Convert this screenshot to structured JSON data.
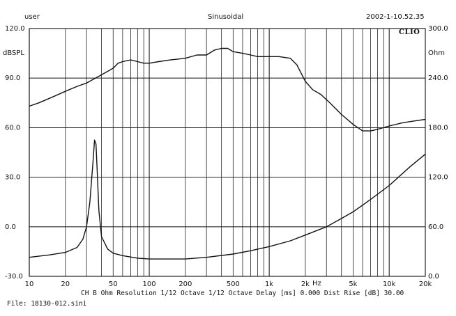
{
  "header": {
    "user": "user",
    "mode": "Sinusoidal",
    "datetime": "2002-1-10.52.35",
    "logo": "CLIO"
  },
  "footer": {
    "settings": "CH B  Ohm  Resolution 1/12 Octave   1/12 Octave  Delay [ms] 0.000   Dist Rise [dB] 30.00",
    "file": "File: 18130-012.sini"
  },
  "colors": {
    "background": "#ffffff",
    "trace": "#111111",
    "grid": "#222222"
  },
  "chart_data": {
    "type": "line",
    "grid": true,
    "x_scale": "log",
    "xlim": [
      10,
      20000
    ],
    "x_ticks": [
      10,
      20,
      50,
      100,
      200,
      500,
      1000,
      2000,
      5000,
      10000,
      20000
    ],
    "x_tick_labels": [
      "10",
      "20",
      "50",
      "100",
      "200",
      "500",
      "1k",
      "2k",
      "5k",
      "10k",
      "20k"
    ],
    "x_unit": "Hz",
    "left_axis": {
      "label": "dBSPL",
      "ylim": [
        -30,
        120
      ],
      "ticks": [
        120,
        90,
        60,
        30,
        0,
        -30
      ],
      "tick_labels": [
        "120.0",
        "90.0",
        "60.0",
        "30.0",
        "0.0",
        "-30.0"
      ]
    },
    "right_axis": {
      "label": "Ohm",
      "ylim": [
        0,
        300
      ],
      "ticks": [
        300,
        240,
        180,
        120,
        60,
        0
      ],
      "tick_labels": [
        "300.0",
        "240.0",
        "180.0",
        "120.0",
        "60.0",
        "0.0"
      ]
    },
    "series": [
      {
        "axis": "left",
        "points": [
          [
            10,
            73
          ],
          [
            12,
            75
          ],
          [
            15,
            78
          ],
          [
            20,
            82
          ],
          [
            25,
            85
          ],
          [
            30,
            87
          ],
          [
            40,
            92
          ],
          [
            50,
            96
          ],
          [
            55,
            99
          ],
          [
            60,
            100
          ],
          [
            70,
            101
          ],
          [
            80,
            100
          ],
          [
            90,
            99
          ],
          [
            100,
            99
          ],
          [
            120,
            100
          ],
          [
            150,
            101
          ],
          [
            200,
            102
          ],
          [
            250,
            104
          ],
          [
            300,
            104
          ],
          [
            350,
            107
          ],
          [
            400,
            108
          ],
          [
            450,
            108
          ],
          [
            500,
            106
          ],
          [
            600,
            105
          ],
          [
            700,
            104
          ],
          [
            800,
            103
          ],
          [
            1000,
            103
          ],
          [
            1200,
            103
          ],
          [
            1500,
            102
          ],
          [
            1700,
            98
          ],
          [
            2000,
            88
          ],
          [
            2300,
            83
          ],
          [
            2700,
            80
          ],
          [
            3200,
            75
          ],
          [
            4000,
            68
          ],
          [
            5000,
            62
          ],
          [
            6000,
            58
          ],
          [
            7000,
            58
          ],
          [
            8000,
            59
          ],
          [
            10000,
            61
          ],
          [
            13000,
            63
          ],
          [
            16000,
            64
          ],
          [
            20000,
            65
          ]
        ]
      },
      {
        "axis": "right",
        "points": [
          [
            10,
            23
          ],
          [
            15,
            26
          ],
          [
            20,
            29
          ],
          [
            25,
            35
          ],
          [
            28,
            45
          ],
          [
            30,
            60
          ],
          [
            32,
            90
          ],
          [
            34,
            140
          ],
          [
            35,
            165
          ],
          [
            36,
            160
          ],
          [
            37,
            120
          ],
          [
            38,
            80
          ],
          [
            40,
            48
          ],
          [
            45,
            33
          ],
          [
            50,
            28
          ],
          [
            60,
            25
          ],
          [
            80,
            22
          ],
          [
            100,
            21
          ],
          [
            150,
            21
          ],
          [
            200,
            21
          ],
          [
            300,
            23
          ],
          [
            500,
            27
          ],
          [
            700,
            31
          ],
          [
            1000,
            36
          ],
          [
            1500,
            43
          ],
          [
            2000,
            50
          ],
          [
            3000,
            60
          ],
          [
            4000,
            70
          ],
          [
            5000,
            78
          ],
          [
            7000,
            93
          ],
          [
            10000,
            110
          ],
          [
            15000,
            133
          ],
          [
            20000,
            148
          ]
        ]
      }
    ]
  }
}
